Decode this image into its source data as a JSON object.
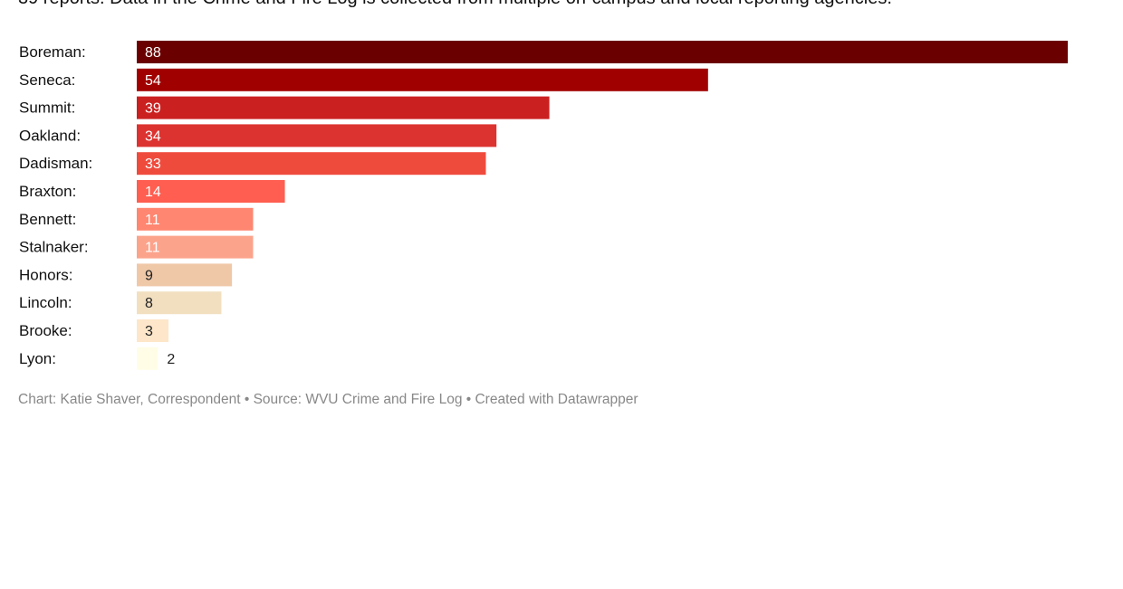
{
  "intro": "39 reports. Data in the Crime and Fire Log is collected from multiple on-campus and local reporting agencies.",
  "footer": "Chart: Katie Shaver, Correspondent • Source: WVU Crime and Fire Log • Created with Datawrapper",
  "chart_data": {
    "type": "bar",
    "orientation": "horizontal",
    "categories": [
      "Boreman:",
      "Seneca:",
      "Summit:",
      "Oakland:",
      "Dadisman:",
      "Braxton:",
      "Bennett:",
      "Stalnaker:",
      "Honors:",
      "Lincoln:",
      "Brooke:",
      "Lyon:"
    ],
    "values": [
      88,
      54,
      39,
      34,
      33,
      14,
      11,
      11,
      9,
      8,
      3,
      2
    ],
    "colors": [
      "#6b0000",
      "#a10000",
      "#cb2020",
      "#dc3330",
      "#ef4b3d",
      "#ff5e50",
      "#ff8670",
      "#fca38c",
      "#efc8a8",
      "#f1dfc0",
      "#fde6c9",
      "#fffde6"
    ],
    "xlim": [
      0,
      88
    ],
    "grid": false
  }
}
